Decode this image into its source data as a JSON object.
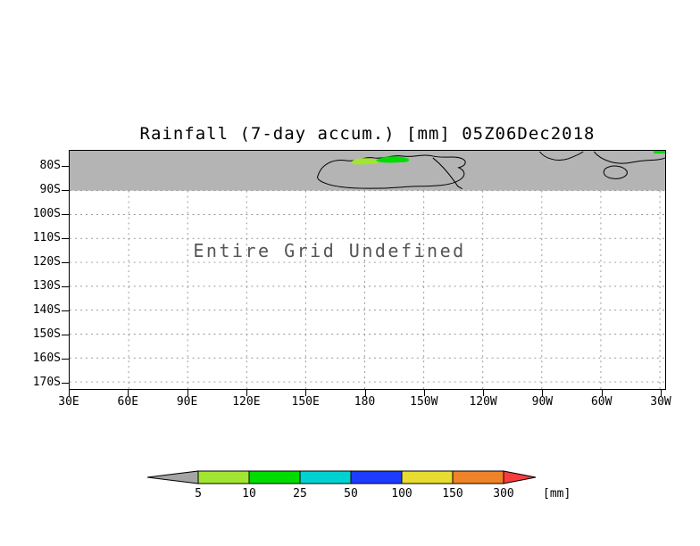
{
  "chart": {
    "title": "Rainfall (7-day accum.) [mm] 05Z06Dec2018",
    "annotation": "Entire Grid Undefined",
    "colors": {
      "land_band_gray": "#b4b4b4",
      "coastline": "#000000",
      "gridline": "#999999",
      "frame": "#000000",
      "annotation_text": "#555555"
    }
  },
  "axes": {
    "y_ticks": [
      "80S",
      "90S",
      "100S",
      "110S",
      "120S",
      "130S",
      "140S",
      "150S",
      "160S",
      "170S"
    ],
    "x_ticks": [
      "30E",
      "60E",
      "90E",
      "120E",
      "150E",
      "180",
      "150W",
      "120W",
      "90W",
      "60W",
      "30W"
    ]
  },
  "colorbar": {
    "values": [
      "5",
      "10",
      "25",
      "50",
      "100",
      "150",
      "300"
    ],
    "unit_label": "[mm]",
    "segments": [
      {
        "name": "below-5",
        "color": "#a5a5a5",
        "shape": "arrow-left"
      },
      {
        "name": "5-10",
        "color": "#a0e632",
        "shape": "box"
      },
      {
        "name": "10-25",
        "color": "#00dc00",
        "shape": "box"
      },
      {
        "name": "25-50",
        "color": "#00d2d2",
        "shape": "box"
      },
      {
        "name": "50-100",
        "color": "#1e3cff",
        "shape": "box"
      },
      {
        "name": "100-150",
        "color": "#e6dc32",
        "shape": "box"
      },
      {
        "name": "150-300",
        "color": "#f08228",
        "shape": "box"
      },
      {
        "name": "above-300",
        "color": "#fa3c3c",
        "shape": "arrow-right"
      }
    ]
  },
  "chart_data": {
    "type": "heatmap",
    "title": "Rainfall (7-day accum.) [mm] 05Z06Dec2018",
    "x_tick_labels": [
      "30E",
      "60E",
      "90E",
      "120E",
      "150E",
      "180",
      "150W",
      "120W",
      "90W",
      "60W",
      "30W"
    ],
    "y_tick_labels": [
      "80S",
      "90S",
      "100S",
      "110S",
      "120S",
      "130S",
      "140S",
      "150S",
      "160S",
      "170S"
    ],
    "colorbar_thresholds": [
      5,
      10,
      25,
      50,
      100,
      150,
      300
    ],
    "colorbar_unit": "mm",
    "annotation": "Entire Grid Undefined",
    "grid": "dotted",
    "legend_position": "bottom",
    "note": "Grid is undefined (blank) over the whole map; a gray undefined/land band spans the top row (80S-90S) with Antarctic-like coastlines, and small 5-25 mm rainfall patches appear along the coast between about 150E and 170W and at the top-right corner."
  }
}
